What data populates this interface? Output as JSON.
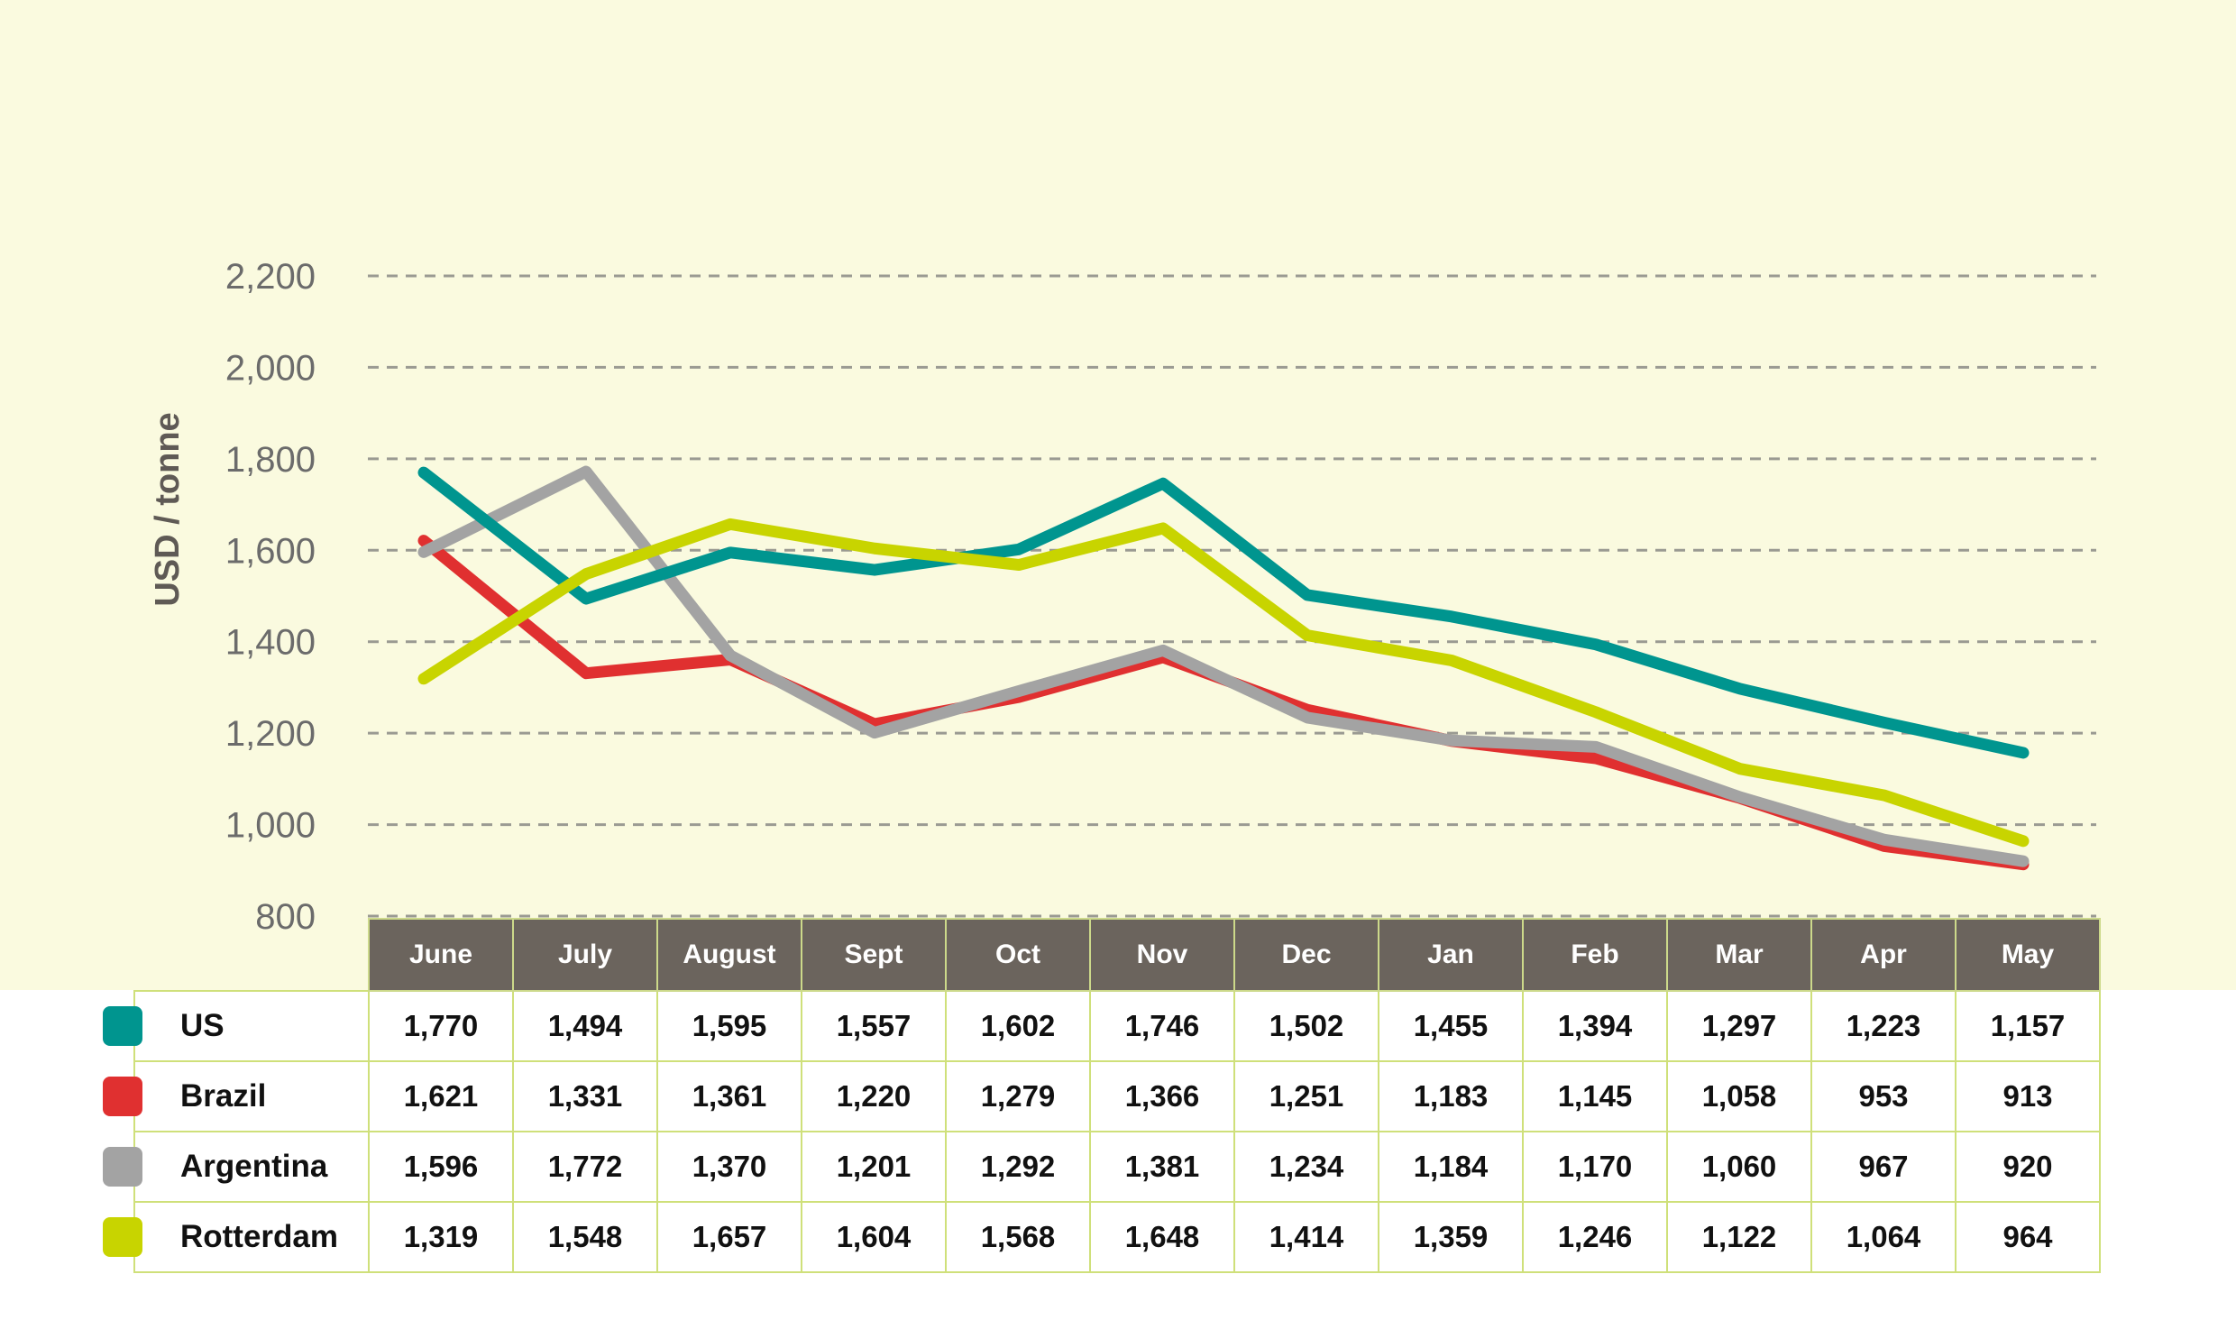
{
  "chart_data": {
    "type": "line",
    "title": "",
    "xlabel": "",
    "ylabel": "USD / tonne",
    "ylim": [
      800,
      2200
    ],
    "yticks": [
      800,
      1000,
      1200,
      1400,
      1600,
      1800,
      2000,
      2200
    ],
    "ytick_labels": [
      "800",
      "1,000",
      "1,200",
      "1,400",
      "1,600",
      "1,800",
      "2,000",
      "2,200"
    ],
    "grid": true,
    "legend": "table-below",
    "categories": [
      "June",
      "July",
      "August",
      "Sept",
      "Oct",
      "Nov",
      "Dec",
      "Jan",
      "Feb",
      "Mar",
      "Apr",
      "May"
    ],
    "series": [
      {
        "name": "US",
        "color": "#00958f",
        "values": [
          1770,
          1494,
          1595,
          1557,
          1602,
          1746,
          1502,
          1455,
          1394,
          1297,
          1223,
          1157
        ],
        "labels": [
          "1,770",
          "1,494",
          "1,595",
          "1,557",
          "1,602",
          "1,746",
          "1,502",
          "1,455",
          "1,394",
          "1,297",
          "1,223",
          "1,157"
        ]
      },
      {
        "name": "Brazil",
        "color": "#e03030",
        "values": [
          1621,
          1331,
          1361,
          1220,
          1279,
          1366,
          1251,
          1183,
          1145,
          1058,
          953,
          913
        ],
        "labels": [
          "1,621",
          "1,331",
          "1,361",
          "1,220",
          "1,279",
          "1,366",
          "1,251",
          "1,183",
          "1,145",
          "1,058",
          "953",
          "913"
        ]
      },
      {
        "name": "Argentina",
        "color": "#a3a3a3",
        "values": [
          1596,
          1772,
          1370,
          1201,
          1292,
          1381,
          1234,
          1184,
          1170,
          1060,
          967,
          920
        ],
        "labels": [
          "1,596",
          "1,772",
          "1,370",
          "1,201",
          "1,292",
          "1,381",
          "1,234",
          "1,184",
          "1,170",
          "1,060",
          "967",
          "920"
        ]
      },
      {
        "name": "Rotterdam",
        "color": "#c8d400",
        "values": [
          1319,
          1548,
          1657,
          1604,
          1568,
          1648,
          1414,
          1359,
          1246,
          1122,
          1064,
          964
        ],
        "labels": [
          "1,319",
          "1,548",
          "1,657",
          "1,604",
          "1,568",
          "1,648",
          "1,414",
          "1,359",
          "1,246",
          "1,122",
          "1,064",
          "964"
        ]
      }
    ]
  }
}
